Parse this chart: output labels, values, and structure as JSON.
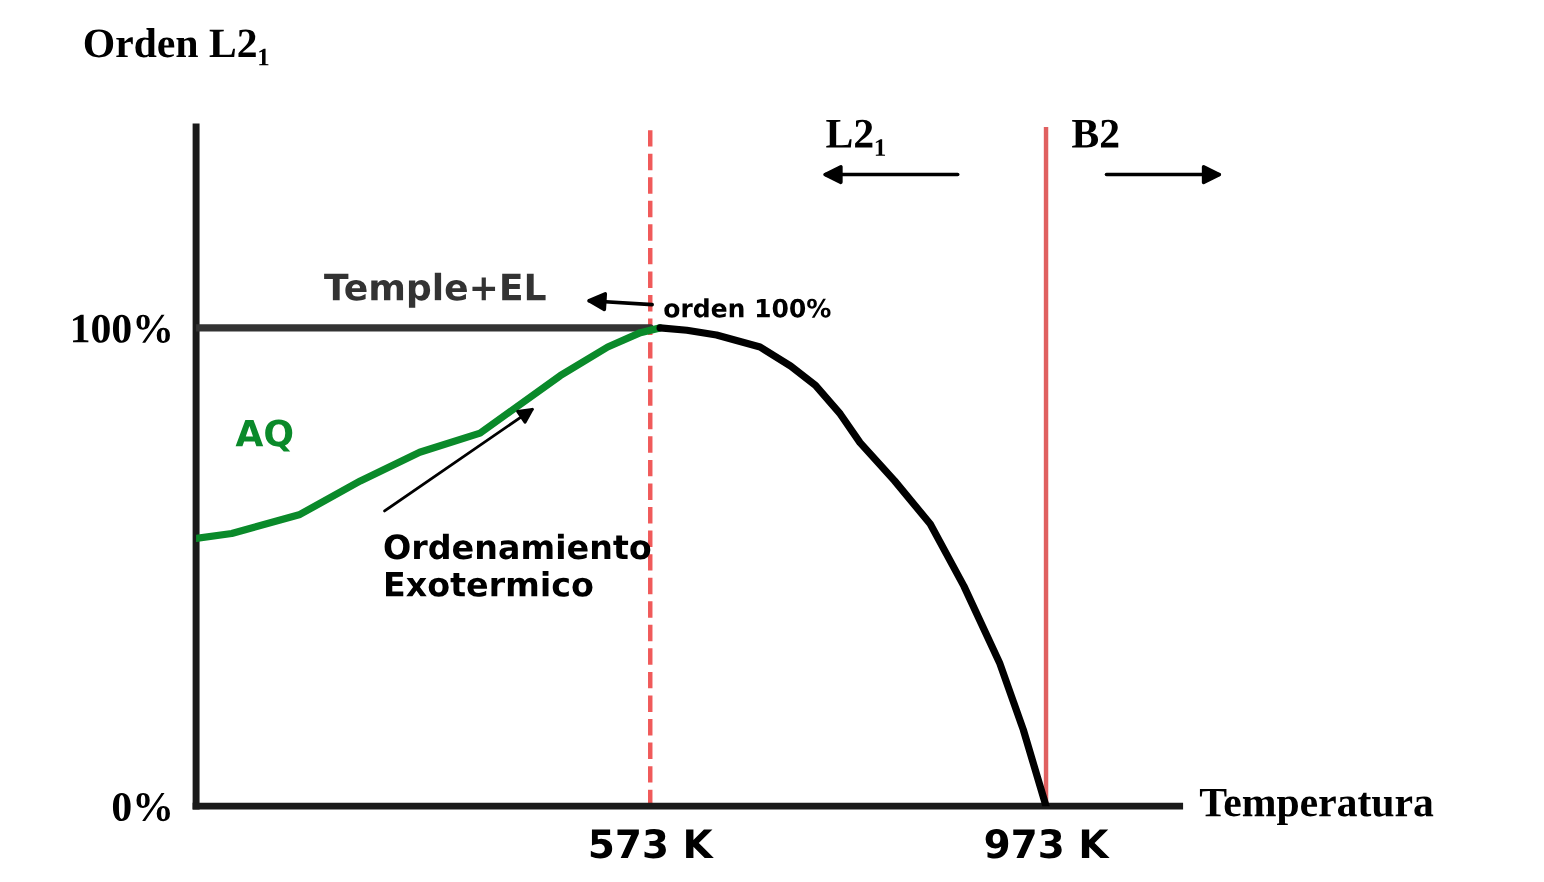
{
  "chart_data": {
    "type": "line",
    "xlabel": "Temperatura",
    "ylabel": "Orden L2₁",
    "xlim": [
      114,
      1108
    ],
    "ylim": [
      0,
      142
    ],
    "xticks": [
      {
        "value": 573,
        "label": "573 K"
      },
      {
        "value": 973,
        "label": "973 K"
      }
    ],
    "yticks": [
      {
        "value": 0,
        "label": "0%"
      },
      {
        "value": 100,
        "label": "100%"
      }
    ],
    "line_style": "solid",
    "marker": "none",
    "series": [
      {
        "name": "Temple+EL",
        "color": "#333333",
        "x": [
          114,
          573
        ],
        "values": [
          100,
          100
        ]
      },
      {
        "name": "AQ",
        "color": "#0a8a2a",
        "x": [
          114,
          150,
          219,
          280,
          340,
          401,
          482,
          530,
          563,
          583
        ],
        "values": [
          56,
          57,
          61,
          68,
          74,
          78,
          90,
          96,
          99,
          100
        ]
      },
      {
        "color": "#000000",
        "x": [
          583,
          610,
          640,
          684,
          715,
          740,
          765,
          785,
          820,
          856,
          890,
          926,
          950,
          973
        ],
        "values": [
          100,
          99.5,
          98.5,
          96,
          92,
          88,
          82,
          76,
          68,
          59,
          46,
          30,
          16,
          0
        ]
      }
    ],
    "ref_lines": [
      {
        "axis": "x",
        "value": 573,
        "color": "#f05a5a",
        "line_style": "dashed"
      },
      {
        "axis": "x",
        "value": 973,
        "color": "#e06060",
        "line_style": "solid"
      }
    ],
    "annotations": [
      "orden 100%",
      {
        "text": "Ordenamiento\nExotermico",
        "x": 461,
        "y": 84
      },
      "L2₁",
      "B2"
    ]
  }
}
